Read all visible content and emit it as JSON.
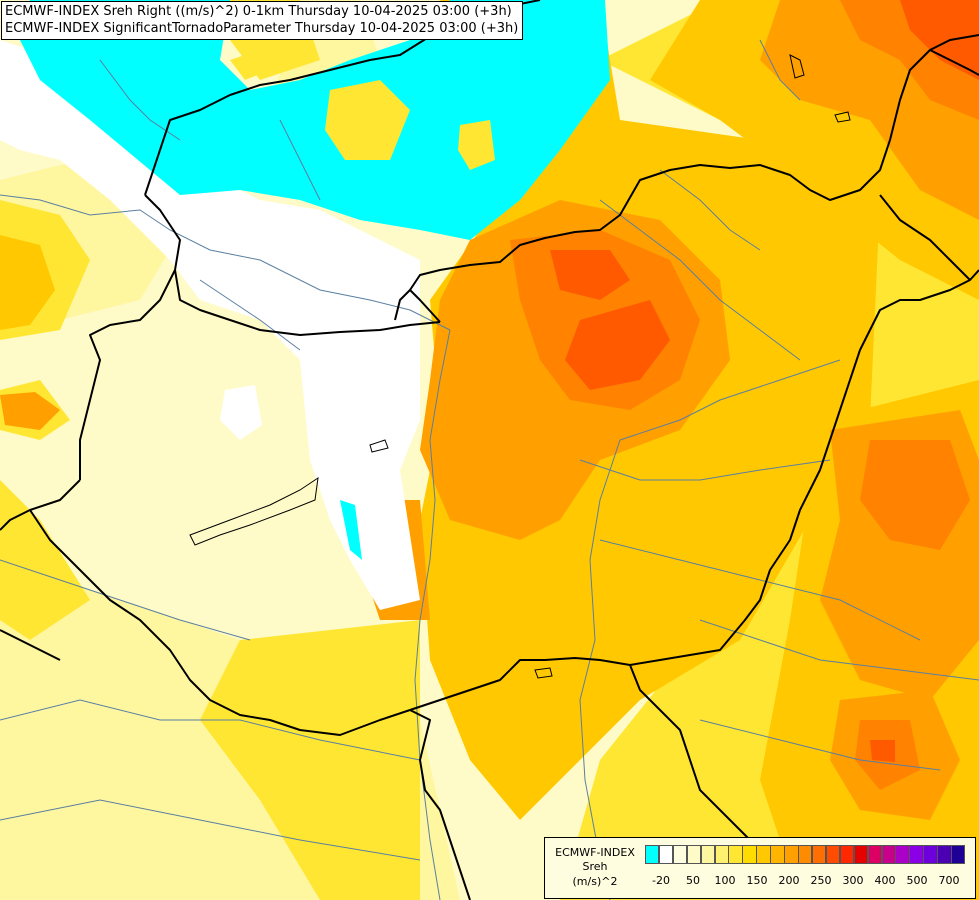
{
  "title": {
    "line1": "ECMWF-INDEX Sreh Right ((m/s)^2) 0-1km Thursday 10-04-2025 03:00 (+3h)",
    "line2": "ECMWF-INDEX SignificantTornadoParameter Thursday 10-04-2025 03:00 (+3h)"
  },
  "legend": {
    "label1": "ECMWF-INDEX",
    "label2": "Sreh",
    "label3": "(m/s)^2",
    "colors": [
      "#00ffff",
      "#ffffff",
      "#fffde0",
      "#fffbc8",
      "#fff7a0",
      "#fff06e",
      "#ffe632",
      "#ffdc00",
      "#ffc800",
      "#ffb400",
      "#ffa000",
      "#ff8c00",
      "#ff6e00",
      "#ff4c00",
      "#ff2800",
      "#e60000",
      "#dc0064",
      "#c8008c",
      "#aa00c8",
      "#8c00e6",
      "#6e00dc",
      "#4b00b4",
      "#1e0096"
    ],
    "ticks": [
      "-20",
      "50",
      "100",
      "150",
      "200",
      "250",
      "300",
      "400",
      "500",
      "700"
    ]
  },
  "colors": {
    "cyan": "#00ffff",
    "white": "#ffffff",
    "pale_yellow": "#fffbc8",
    "light_yellow": "#fff6a0",
    "yellow": "#ffe632",
    "gold": "#ffc800",
    "orange": "#ffaa00",
    "dark_orange": "#ff8200",
    "red_orange": "#ff5a00",
    "border": "#000000",
    "river": "#5a7fa0"
  }
}
